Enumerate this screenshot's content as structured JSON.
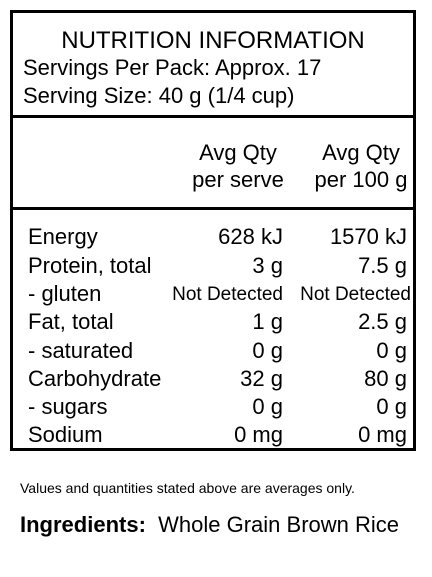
{
  "panel": {
    "title": "NUTRITION INFORMATION",
    "servings_per_pack": "Servings Per Pack: Approx. 17",
    "serving_size": "Serving Size: 40 g (1/4 cup)"
  },
  "columns": {
    "per_serve": [
      "Avg Qty",
      "per serve"
    ],
    "per_100g": [
      "Avg Qty",
      "per 100 g"
    ]
  },
  "rows": [
    {
      "label": "Energy",
      "per_serve": "628 kJ",
      "per_100g": "1570 kJ"
    },
    {
      "label": "Protein, total",
      "per_serve": "3 g",
      "per_100g": "7.5 g"
    },
    {
      "label": " - gluten",
      "per_serve": "Not Detected",
      "per_100g": "Not Detected"
    },
    {
      "label": "Fat, total",
      "per_serve": "1 g",
      "per_100g": "2.5 g"
    },
    {
      "label": " - saturated",
      "per_serve": "0 g",
      "per_100g": "0 g"
    },
    {
      "label": "Carbohydrate",
      "per_serve": "32 g",
      "per_100g": "80 g"
    },
    {
      "label": " - sugars",
      "per_serve": "0 g",
      "per_100g": "0 g"
    },
    {
      "label": "Sodium",
      "per_serve": "0 mg",
      "per_100g": "0 mg"
    }
  ],
  "footnote": "Values and quantities stated above are averages only.",
  "ingredients": {
    "label": "Ingredients:",
    "text": "Whole Grain Brown Rice"
  }
}
